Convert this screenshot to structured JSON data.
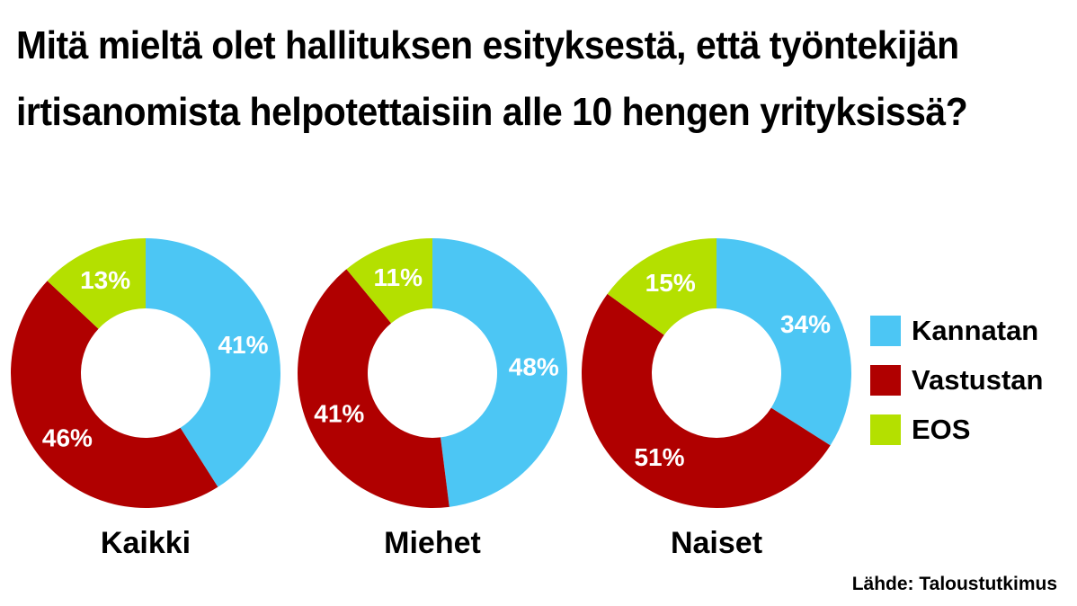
{
  "title": "Mitä mieltä olet hallituksen esityksestä, että työntekijän irtisanomista helpotettaisiin alle 10 hengen yrityksissä?",
  "source": "Lähde: Taloustutkimus",
  "colors": {
    "Kannatan": "#4cc6f4",
    "Vastustan": "#b00000",
    "EOS": "#b4e000"
  },
  "legend": [
    {
      "label": "Kannatan",
      "color": "#4cc6f4"
    },
    {
      "label": "Vastustan",
      "color": "#b00000"
    },
    {
      "label": "EOS",
      "color": "#b4e000"
    }
  ],
  "chart_data": [
    {
      "type": "pie",
      "title": "Kaikki",
      "categories": [
        "Kannatan",
        "Vastustan",
        "EOS"
      ],
      "values": [
        41,
        46,
        13
      ],
      "labels": [
        "41%",
        "46%",
        "13%"
      ]
    },
    {
      "type": "pie",
      "title": "Miehet",
      "categories": [
        "Kannatan",
        "Vastustan",
        "EOS"
      ],
      "values": [
        48,
        41,
        11
      ],
      "labels": [
        "48%",
        "41%",
        "11%"
      ]
    },
    {
      "type": "pie",
      "title": "Naiset",
      "categories": [
        "Kannatan",
        "Vastustan",
        "EOS"
      ],
      "values": [
        34,
        51,
        15
      ],
      "labels": [
        "34%",
        "51%",
        "15%"
      ]
    }
  ]
}
